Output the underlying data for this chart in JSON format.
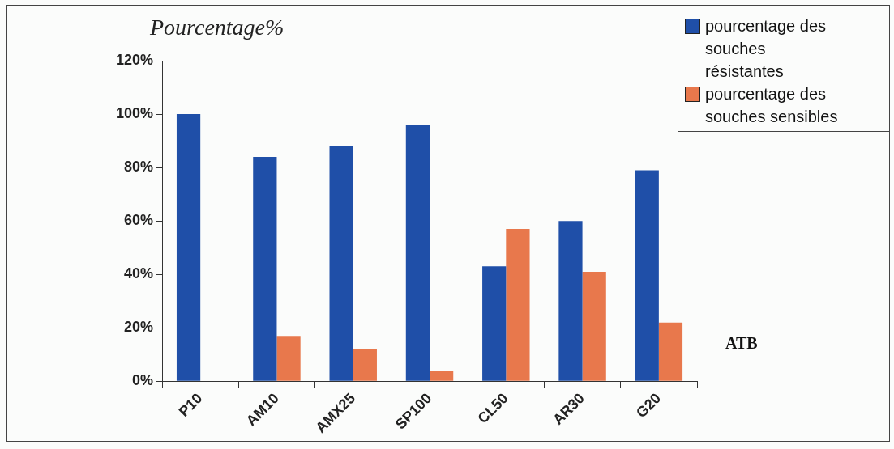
{
  "chart_data": {
    "type": "bar",
    "ylabel": "Pourcentage%",
    "xlabel": "ATB",
    "categories": [
      "P10",
      "AM10",
      "AMX25",
      "SP100",
      "CL50",
      "AR30",
      "G20"
    ],
    "series": [
      {
        "name": "pourcentage des souches résistantes",
        "color": "#1f4fa8",
        "values": [
          100,
          84,
          88,
          96,
          43,
          60,
          79
        ]
      },
      {
        "name": "pourcentage des souches sensibles",
        "color": "#e8784c",
        "values": [
          0,
          17,
          12,
          4,
          57,
          41,
          22
        ]
      }
    ],
    "ylim": [
      0,
      120
    ],
    "yticks": [
      {
        "value": 0,
        "label": "0%"
      },
      {
        "value": 20,
        "label": "20%"
      },
      {
        "value": 40,
        "label": "40%"
      },
      {
        "value": 60,
        "label": "60%"
      },
      {
        "value": 80,
        "label": "80%"
      },
      {
        "value": 100,
        "label": "100%"
      },
      {
        "value": 120,
        "label": "120%"
      }
    ],
    "grid": false,
    "legend": "top right"
  }
}
